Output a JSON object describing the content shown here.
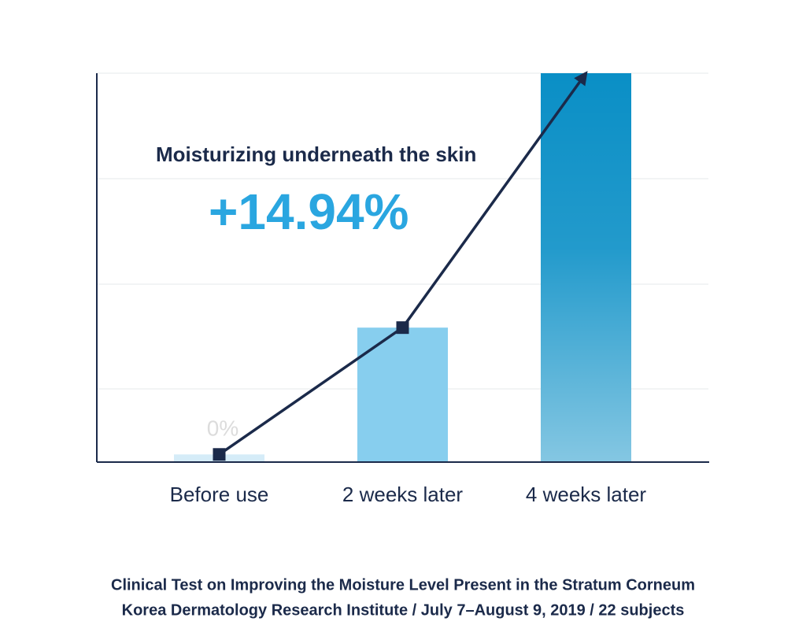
{
  "chart_data": {
    "type": "bar",
    "annotation": "Moisturizing underneath the skin",
    "categories": [
      "Before use",
      "2 weeks later",
      "4 weeks later"
    ],
    "values": [
      0,
      4.97,
      14.94
    ],
    "value_labels": [
      "0%",
      null,
      "+14.94%"
    ],
    "colors": [
      "#d5ecf8",
      "#87ceee",
      "#0a8fc6"
    ],
    "line_color": "#1b2a4a",
    "ylim": [
      -0.3,
      14.94
    ],
    "grid": true,
    "caption": [
      "Clinical Test on Improving the Moisture Level Present in the Stratum Corneum",
      "Korea Dermatology Research Institute / July 7–August 9, 2019 / 22 subjects"
    ]
  }
}
